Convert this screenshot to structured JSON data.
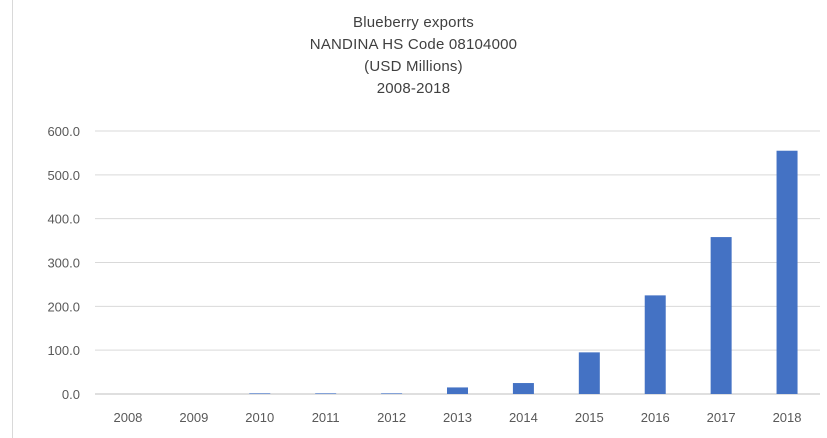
{
  "chart_data": {
    "type": "bar",
    "title_lines": [
      "Blueberry exports",
      "NANDINA  HS Code 08104000",
      "(USD Millions)",
      "2008-2018"
    ],
    "categories": [
      "2008",
      "2009",
      "2010",
      "2011",
      "2012",
      "2013",
      "2014",
      "2015",
      "2016",
      "2017",
      "2018"
    ],
    "values": [
      0.0,
      0.0,
      1.5,
      1.5,
      1.5,
      15.0,
      25.0,
      95.0,
      225.0,
      358.0,
      555.0
    ],
    "yticks": [
      "0.0",
      "100.0",
      "200.0",
      "300.0",
      "400.0",
      "500.0",
      "600.0"
    ],
    "ylim": [
      0,
      600
    ],
    "xlabel": "",
    "ylabel": "",
    "grid": true,
    "bar_color": "#4472c4"
  }
}
